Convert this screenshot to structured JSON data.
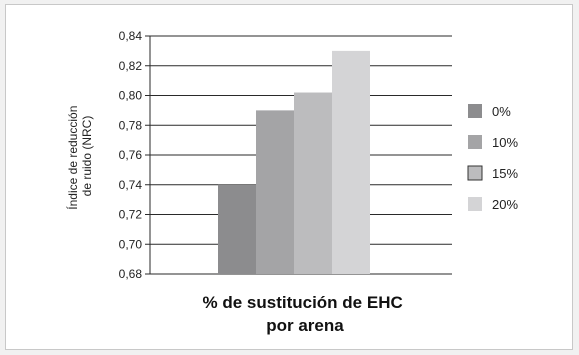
{
  "chart_data": {
    "type": "bar",
    "title": "",
    "xlabel": "% de sustitución de EHC\npor arena",
    "ylabel": "Índice de reducción\nde ruido (NRC)",
    "ylim": [
      0.68,
      0.84
    ],
    "yticks": [
      "0,68",
      "0,70",
      "0,72",
      "0,74",
      "0,76",
      "0,78",
      "0,80",
      "0,82",
      "0,84"
    ],
    "grid": true,
    "legend_position": "right",
    "series": [
      {
        "name": "0%",
        "value": 0.74,
        "color": "#8c8c8e"
      },
      {
        "name": "10%",
        "value": 0.79,
        "color": "#a4a4a6"
      },
      {
        "name": "15%",
        "value": 0.802,
        "color": "#bcbcbe"
      },
      {
        "name": "20%",
        "value": 0.83,
        "color": "#d4d4d6"
      }
    ]
  }
}
